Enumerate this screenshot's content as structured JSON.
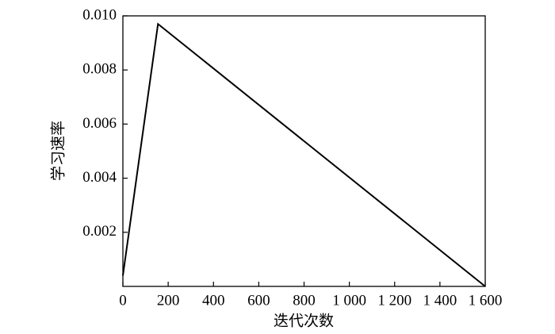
{
  "chart_data": {
    "type": "line",
    "x_label": "迭代次数",
    "y_label": "学习速率",
    "series": [
      {
        "color": "#000000",
        "x": [
          0,
          155,
          1600
        ],
        "values": [
          0.0004,
          0.0097,
          0
        ]
      }
    ],
    "xlim": [
      0,
      1600
    ],
    "xticks": [
      0,
      200,
      400,
      600,
      800,
      {
        "value": 1000,
        "label": "1 000"
      },
      {
        "value": 1200,
        "label": "1 200"
      },
      {
        "value": 1400,
        "label": "1 400"
      },
      {
        "value": 1600,
        "label": "1 600"
      }
    ],
    "ylim": [
      0,
      0.01
    ],
    "yticks": [
      0.002,
      0.004,
      0.006,
      0.008,
      {
        "value": 0.01,
        "label": "0.010"
      }
    ]
  }
}
